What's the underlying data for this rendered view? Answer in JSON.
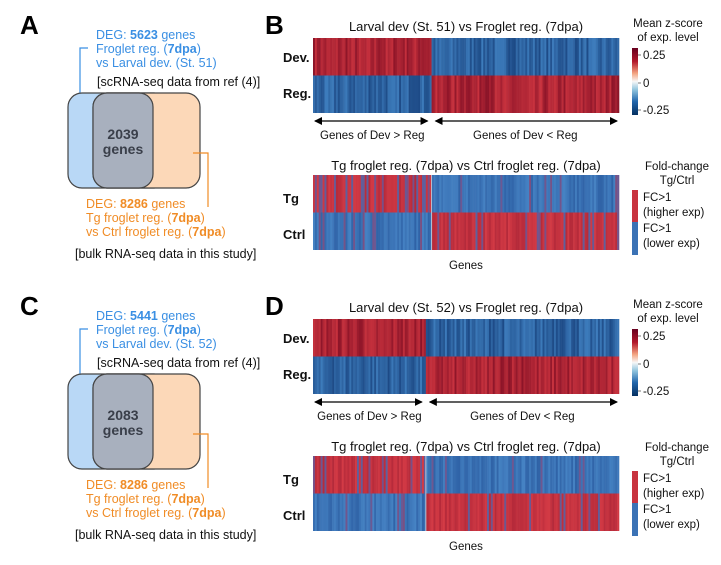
{
  "panels": [
    {
      "venn": {
        "label": "A",
        "blue_line1_prefix": "DEG: ",
        "blue_count": "5623",
        "blue_line1_suffix": " genes",
        "blue_line2_prefix": "Froglet reg. (",
        "blue_line2_bold": "7dpa",
        "blue_line2_suffix": ")",
        "blue_line3": "vs Larval dev. (St. 51)",
        "blue_source": "[scRNA-seq data from ref (4)]",
        "overlap_count": "2039",
        "overlap_unit": "genes",
        "orange_line1_prefix": "DEG: ",
        "orange_count": "8286",
        "orange_line1_suffix": " genes",
        "orange_line2_prefix": "Tg froglet reg. (",
        "orange_line2_bold": "7dpa",
        "orange_line2_suffix": ")",
        "orange_line3_prefix": "vs Ctrl froglet reg. (",
        "orange_line3_bold": "7dpa",
        "orange_line3_suffix": ")",
        "orange_source": "[bulk RNA-seq data in this study]"
      },
      "heatmaps": {
        "label": "B",
        "top_title": "Larval dev (St. 51) vs Froglet reg. (7dpa)",
        "top_rows": [
          "Dev.",
          "Reg."
        ],
        "arrow_left": "Genes of Dev > Reg",
        "arrow_right": "Genes of Dev < Reg",
        "zscore_title": [
          "Mean z-score",
          "of exp. level"
        ],
        "zscore_ticks": [
          "0.25",
          "0",
          "-0.25"
        ],
        "bottom_title": "Tg froglet reg. (7dpa) vs Ctrl froglet reg. (7dpa)",
        "bottom_rows": [
          "Tg",
          "Ctrl"
        ],
        "bottom_xlabel": "Genes",
        "fc_title": [
          "Fold-change",
          "Tg/Ctrl"
        ],
        "fc_high": [
          "FC>1",
          "(higher exp)"
        ],
        "fc_low": [
          "FC>1",
          "(lower exp)"
        ]
      }
    },
    {
      "venn": {
        "label": "C",
        "blue_line1_prefix": "DEG: ",
        "blue_count": "5441",
        "blue_line1_suffix": " genes",
        "blue_line2_prefix": "Froglet reg. (",
        "blue_line2_bold": "7dpa",
        "blue_line2_suffix": ")",
        "blue_line3": "vs Larval dev. (St. 52)",
        "blue_source": "[scRNA-seq data from ref (4)]",
        "overlap_count": "2083",
        "overlap_unit": "genes",
        "orange_line1_prefix": "DEG: ",
        "orange_count": "8286",
        "orange_line1_suffix": " genes",
        "orange_line2_prefix": "Tg froglet reg. (",
        "orange_line2_bold": "7dpa",
        "orange_line2_suffix": ")",
        "orange_line3_prefix": "vs Ctrl froglet reg. (",
        "orange_line3_bold": "7dpa",
        "orange_line3_suffix": ")",
        "orange_source": "[bulk RNA-seq data in this study]"
      },
      "heatmaps": {
        "label": "D",
        "top_title": "Larval dev (St. 52) vs Froglet reg. (7dpa)",
        "top_rows": [
          "Dev.",
          "Reg."
        ],
        "arrow_left": "Genes of Dev > Reg",
        "arrow_right": "Genes of Dev < Reg",
        "zscore_title": [
          "Mean z-score",
          "of exp. level"
        ],
        "zscore_ticks": [
          "0.25",
          "0",
          "-0.25"
        ],
        "bottom_title": "Tg froglet reg. (7dpa) vs Ctrl froglet reg. (7dpa)",
        "bottom_rows": [
          "Tg",
          "Ctrl"
        ],
        "bottom_xlabel": "Genes",
        "fc_title": [
          "Fold-change",
          "Tg/Ctrl"
        ],
        "fc_high": [
          "FC>1",
          "(higher exp)"
        ],
        "fc_low": [
          "FC>1",
          "(lower exp)"
        ]
      }
    }
  ],
  "colors": {
    "deg_blue": "#3a8fe3",
    "deg_orange": "#f08c26",
    "venn_blue_fill": "#b9d8f6",
    "venn_orange_fill": "#fcd8b8",
    "venn_overlap_fill": "#a8b0be",
    "heat_high": "#b2182b",
    "heat_low": "#2166ac",
    "fc_high": "#c8333f",
    "fc_low": "#3b72b5"
  }
}
